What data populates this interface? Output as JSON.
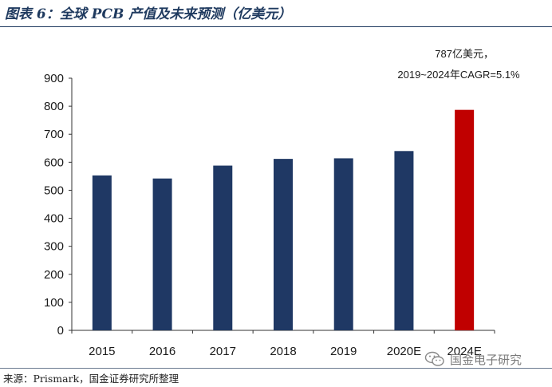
{
  "header": {
    "title": "图表 6：全球 PCB 产值及未来预测（亿美元）"
  },
  "footer": {
    "source": "来源：Prismark，国金证券研究所整理",
    "watermark": "国金电子研究",
    "watermark_icon": "wechat-icon"
  },
  "chart_data": {
    "type": "bar",
    "categories": [
      "2015",
      "2016",
      "2017",
      "2018",
      "2019",
      "2020E",
      "2024E"
    ],
    "values": [
      553,
      542,
      588,
      612,
      614,
      640,
      787
    ],
    "bar_colors": [
      "#1f3864",
      "#1f3864",
      "#1f3864",
      "#1f3864",
      "#1f3864",
      "#1f3864",
      "#c00000"
    ],
    "ylim": [
      0,
      900
    ],
    "yticks": [
      0,
      100,
      200,
      300,
      400,
      500,
      600,
      700,
      800,
      900
    ],
    "grid": false,
    "annotations": [
      "787亿美元，",
      "2019~2024年CAGR=5.1%"
    ]
  }
}
